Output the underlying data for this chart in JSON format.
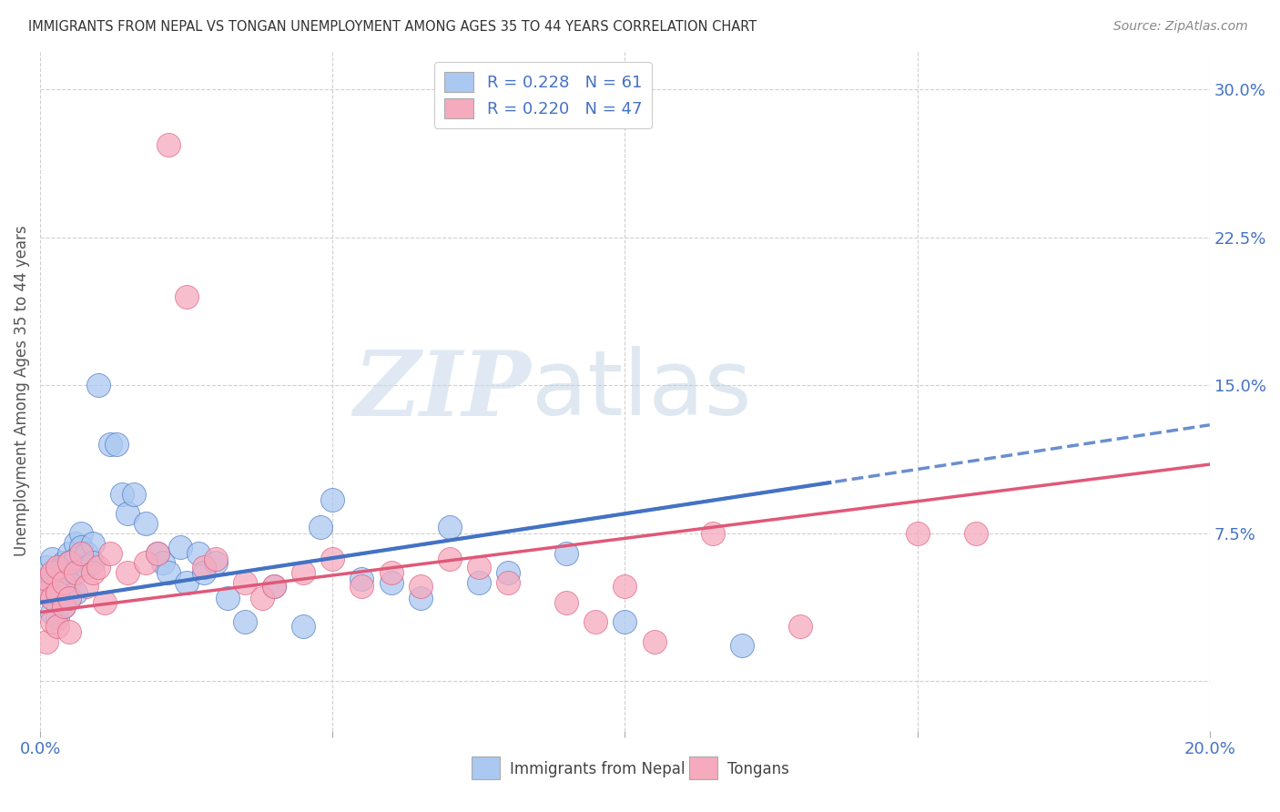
{
  "title": "IMMIGRANTS FROM NEPAL VS TONGAN UNEMPLOYMENT AMONG AGES 35 TO 44 YEARS CORRELATION CHART",
  "source": "Source: ZipAtlas.com",
  "ylabel": "Unemployment Among Ages 35 to 44 years",
  "xlim": [
    0.0,
    0.2
  ],
  "ylim": [
    -0.025,
    0.32
  ],
  "xticks": [
    0.0,
    0.05,
    0.1,
    0.15,
    0.2
  ],
  "yticks_right": [
    0.0,
    0.075,
    0.15,
    0.225,
    0.3
  ],
  "ytick_labels_right": [
    "",
    "7.5%",
    "15.0%",
    "22.5%",
    "30.0%"
  ],
  "nepal_R": 0.228,
  "nepal_N": 61,
  "tongan_R": 0.22,
  "tongan_N": 47,
  "nepal_color": "#aac8f0",
  "tongan_color": "#f5aabe",
  "nepal_line_color": "#4472c4",
  "tongan_line_color": "#e05878",
  "nepal_trend_start_y": 0.04,
  "nepal_trend_end_y": 0.13,
  "tongan_trend_start_y": 0.035,
  "tongan_trend_end_y": 0.11,
  "nepal_x": [
    0.001,
    0.001,
    0.001,
    0.002,
    0.002,
    0.002,
    0.002,
    0.002,
    0.003,
    0.003,
    0.003,
    0.003,
    0.003,
    0.004,
    0.004,
    0.004,
    0.004,
    0.005,
    0.005,
    0.005,
    0.005,
    0.005,
    0.006,
    0.006,
    0.006,
    0.007,
    0.007,
    0.008,
    0.008,
    0.009,
    0.009,
    0.01,
    0.012,
    0.013,
    0.014,
    0.015,
    0.016,
    0.018,
    0.02,
    0.021,
    0.022,
    0.024,
    0.025,
    0.027,
    0.028,
    0.03,
    0.032,
    0.035,
    0.04,
    0.045,
    0.048,
    0.05,
    0.055,
    0.06,
    0.065,
    0.07,
    0.075,
    0.08,
    0.09,
    0.1,
    0.12
  ],
  "nepal_y": [
    0.045,
    0.052,
    0.058,
    0.042,
    0.048,
    0.053,
    0.035,
    0.062,
    0.05,
    0.045,
    0.04,
    0.055,
    0.032,
    0.05,
    0.06,
    0.038,
    0.058,
    0.065,
    0.05,
    0.042,
    0.055,
    0.06,
    0.07,
    0.045,
    0.062,
    0.075,
    0.068,
    0.065,
    0.058,
    0.07,
    0.06,
    0.15,
    0.12,
    0.12,
    0.095,
    0.085,
    0.095,
    0.08,
    0.065,
    0.06,
    0.055,
    0.068,
    0.05,
    0.065,
    0.055,
    0.06,
    0.042,
    0.03,
    0.048,
    0.028,
    0.078,
    0.092,
    0.052,
    0.05,
    0.042,
    0.078,
    0.05,
    0.055,
    0.065,
    0.03,
    0.018
  ],
  "tongan_x": [
    0.001,
    0.001,
    0.001,
    0.002,
    0.002,
    0.002,
    0.003,
    0.003,
    0.003,
    0.004,
    0.004,
    0.005,
    0.005,
    0.005,
    0.006,
    0.007,
    0.008,
    0.009,
    0.01,
    0.011,
    0.012,
    0.015,
    0.018,
    0.02,
    0.022,
    0.025,
    0.028,
    0.03,
    0.035,
    0.038,
    0.04,
    0.045,
    0.05,
    0.055,
    0.06,
    0.065,
    0.07,
    0.075,
    0.08,
    0.09,
    0.095,
    0.1,
    0.105,
    0.115,
    0.13,
    0.15,
    0.16
  ],
  "tongan_y": [
    0.045,
    0.052,
    0.02,
    0.042,
    0.03,
    0.055,
    0.058,
    0.045,
    0.028,
    0.05,
    0.038,
    0.06,
    0.042,
    0.025,
    0.055,
    0.065,
    0.048,
    0.055,
    0.058,
    0.04,
    0.065,
    0.055,
    0.06,
    0.065,
    0.272,
    0.195,
    0.058,
    0.062,
    0.05,
    0.042,
    0.048,
    0.055,
    0.062,
    0.048,
    0.055,
    0.048,
    0.062,
    0.058,
    0.05,
    0.04,
    0.03,
    0.048,
    0.02,
    0.075,
    0.028,
    0.075,
    0.075
  ],
  "watermark_zip": "ZIP",
  "watermark_atlas": "atlas",
  "background_color": "#ffffff",
  "grid_color": "#d0d0d0"
}
